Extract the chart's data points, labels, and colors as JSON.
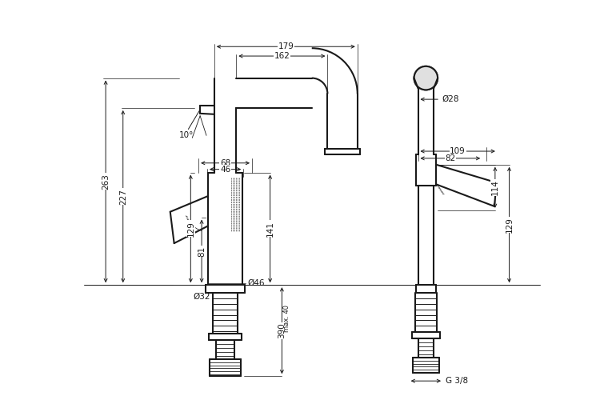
{
  "bg_color": "#ffffff",
  "line_color": "#1a1a1a",
  "dim_color": "#1a1a1a",
  "fig_width": 7.5,
  "fig_height": 5.0,
  "dpi": 100,
  "annotations": {
    "dim_179": "179",
    "dim_162": "162",
    "dim_263": "263",
    "dim_227": "227",
    "dim_129l": "129",
    "dim_81": "81",
    "dim_68": "68",
    "dim_46w": "46",
    "dim_d46": "Ø46",
    "dim_d32": "Ø32",
    "dim_141": "141",
    "dim_390": "390",
    "dim_max40": "max. 40",
    "dim_10": "10°",
    "dim_d28": "Ø28",
    "dim_109": "109",
    "dim_82": "82",
    "dim_114": "114",
    "dim_129r": "129",
    "dim_g38": "G 3/8"
  }
}
